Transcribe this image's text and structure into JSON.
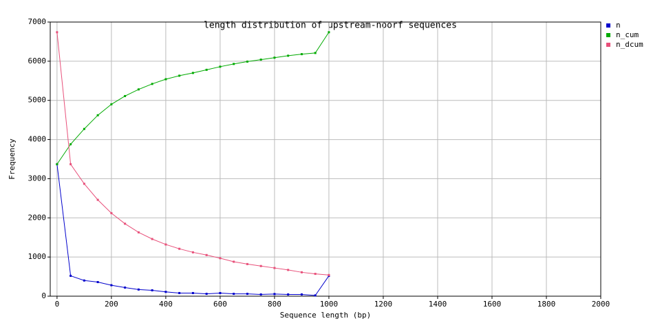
{
  "chart_data": {
    "type": "line",
    "title": "length distribution of upstream-noorf sequences",
    "x_label": "Sequence length (bp)",
    "y_label": "Frequency",
    "x": [
      0,
      50,
      100,
      150,
      200,
      250,
      300,
      350,
      400,
      450,
      500,
      550,
      600,
      650,
      700,
      750,
      800,
      850,
      900,
      950,
      1000
    ],
    "series": [
      {
        "name": "n",
        "color": "#0000cc",
        "values": [
          3370,
          520,
          400,
          360,
          280,
          220,
          170,
          150,
          110,
          80,
          80,
          60,
          80,
          60,
          60,
          45,
          55,
          45,
          45,
          20,
          520
        ]
      },
      {
        "name": "n_cum",
        "color": "#00aa00",
        "values": [
          3370,
          3880,
          4270,
          4620,
          4900,
          5110,
          5280,
          5420,
          5540,
          5630,
          5700,
          5780,
          5860,
          5930,
          5990,
          6040,
          6090,
          6140,
          6180,
          6210,
          6740
        ]
      },
      {
        "name": "n_dcum",
        "color": "#e8507a",
        "values": [
          6740,
          3370,
          2870,
          2460,
          2120,
          1850,
          1630,
          1460,
          1320,
          1210,
          1120,
          1050,
          970,
          880,
          820,
          770,
          720,
          670,
          610,
          570,
          540
        ]
      }
    ],
    "xlim": [
      -25,
      2000
    ],
    "xticks": [
      0,
      200,
      400,
      600,
      800,
      1000,
      1200,
      1400,
      1600,
      1800,
      2000
    ],
    "ylim": [
      0,
      7000
    ],
    "yticks": [
      0,
      1000,
      2000,
      3000,
      4000,
      5000,
      6000,
      7000
    ],
    "grid": true,
    "legend": "right"
  }
}
